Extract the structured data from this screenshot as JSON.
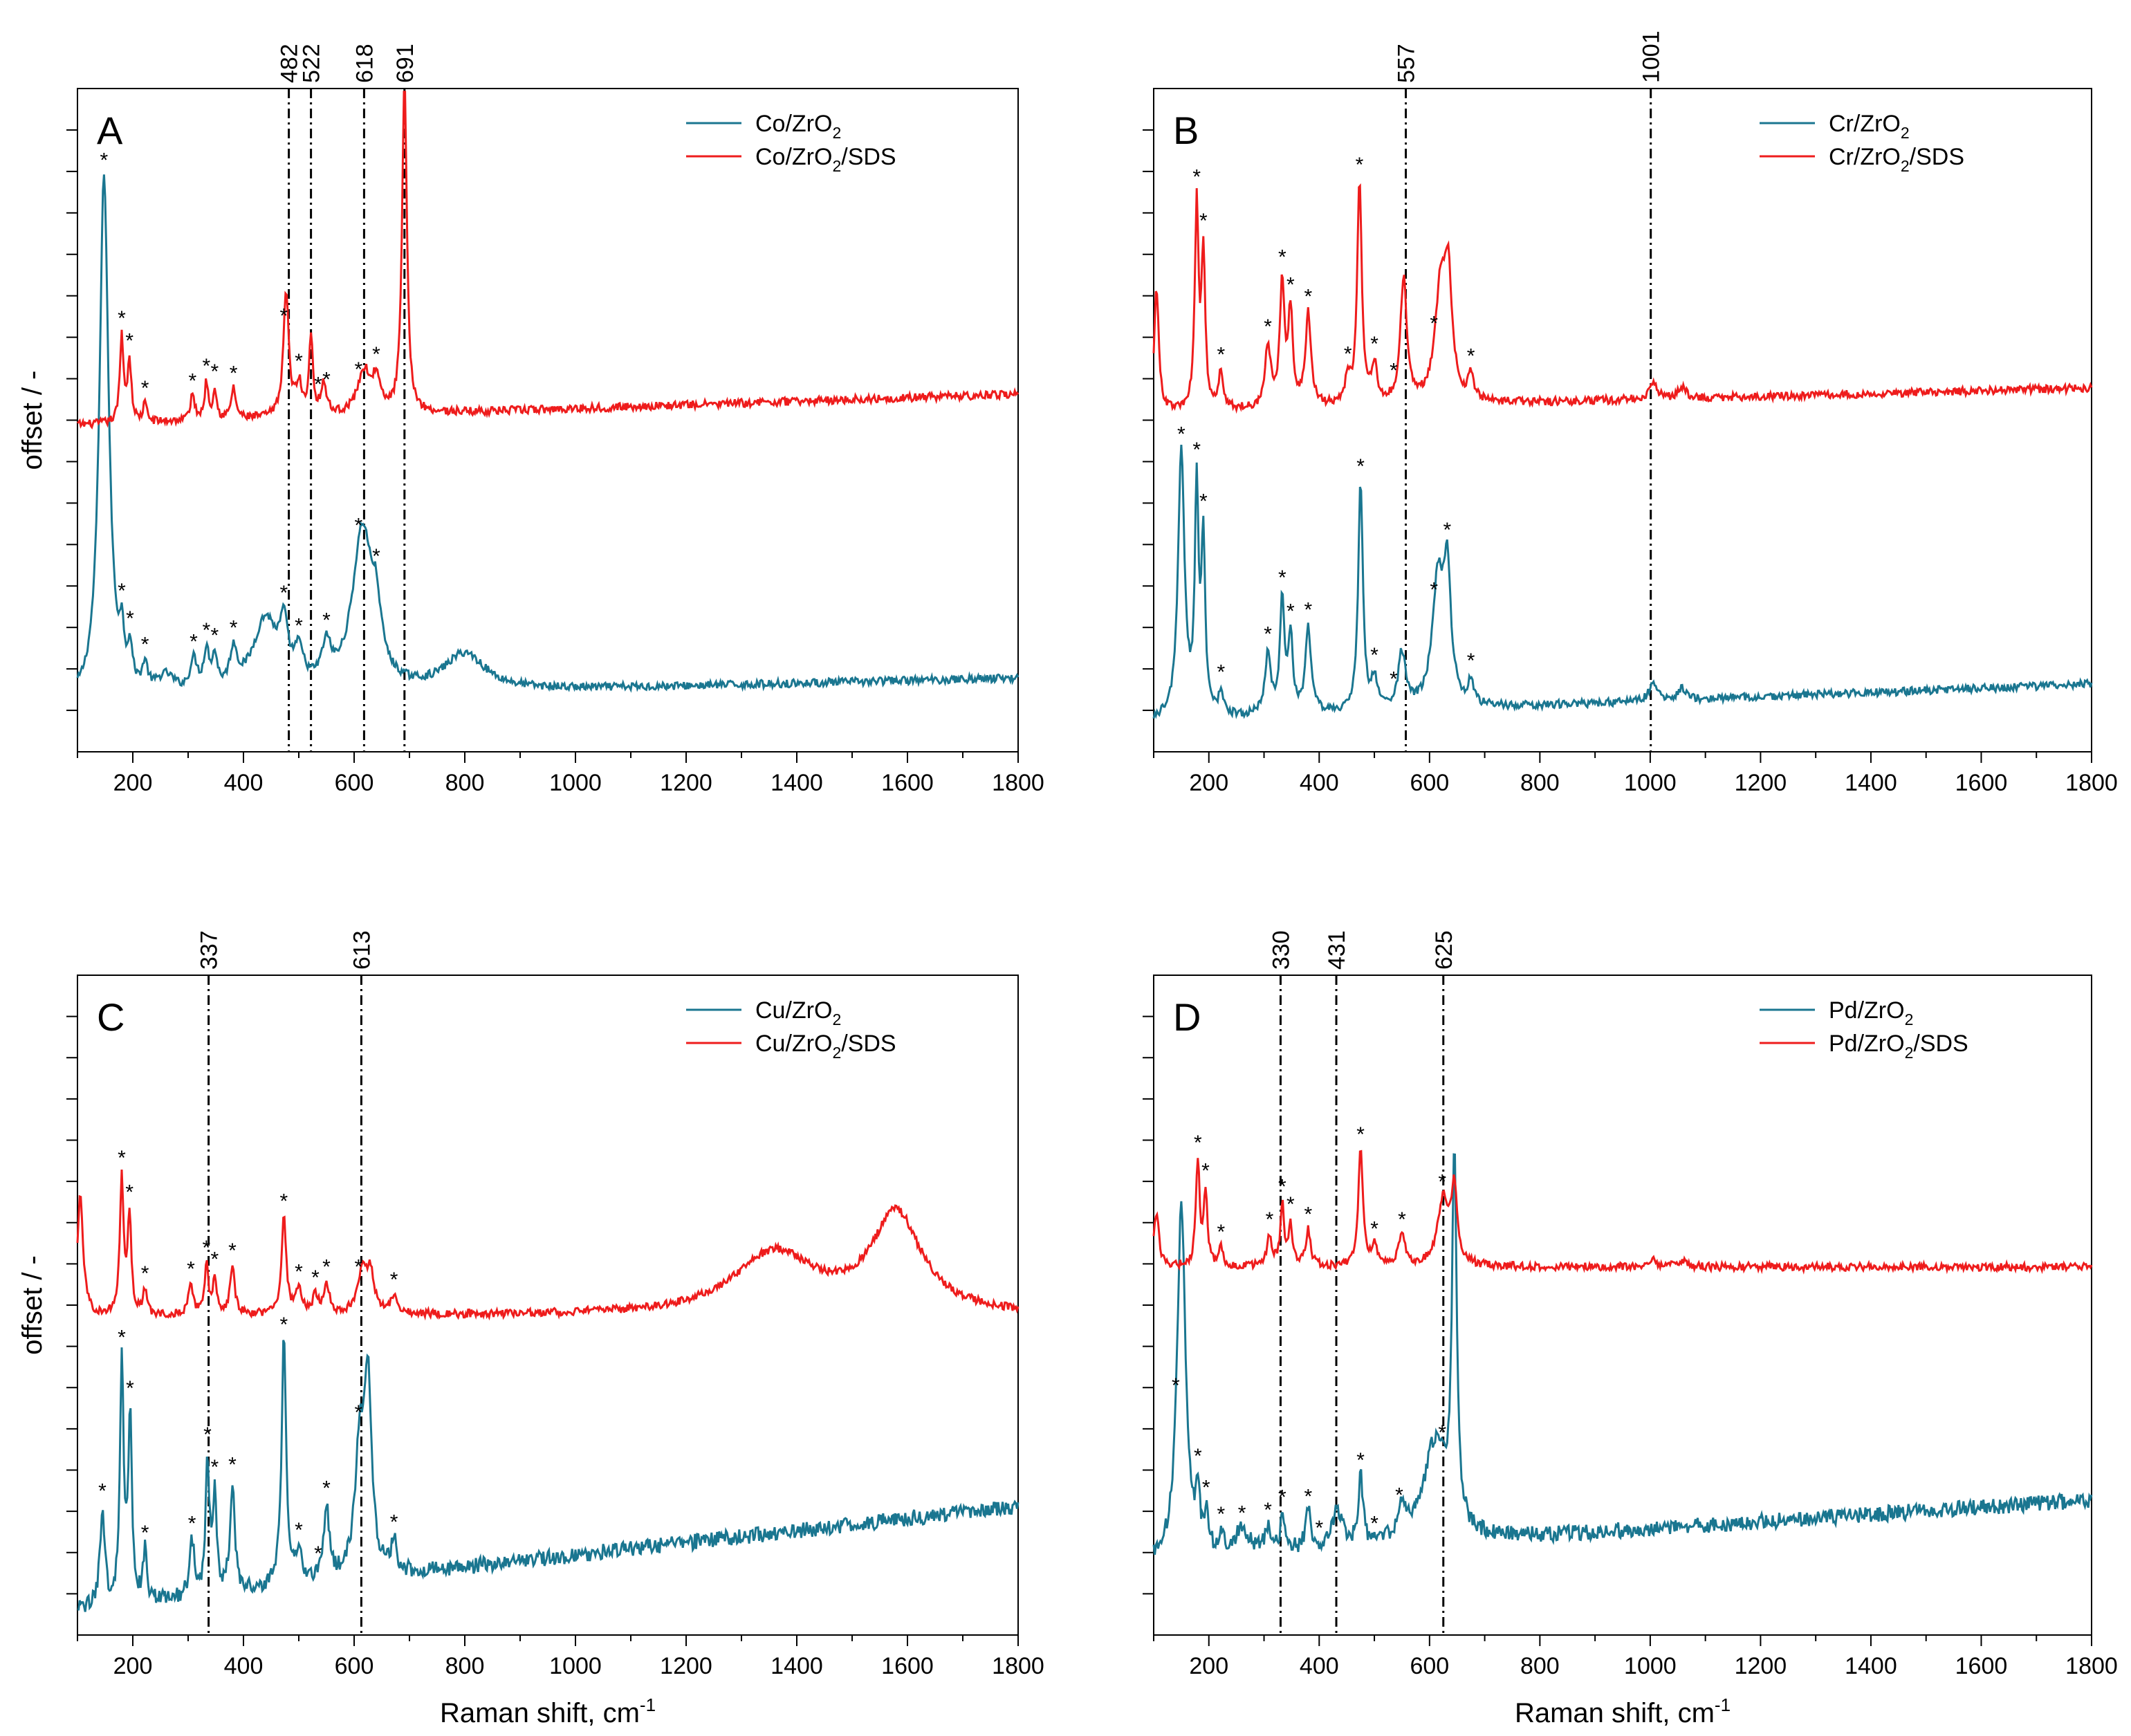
{
  "chart_data": [
    {
      "panel": "A",
      "type": "line",
      "xlabel": "",
      "ylabel": "offset / -",
      "xlim": [
        100,
        1800
      ],
      "xticks": [
        200,
        400,
        600,
        800,
        1000,
        1200,
        1400,
        1600,
        1800
      ],
      "reference_lines": [
        482,
        522,
        618,
        691
      ],
      "legend": [
        {
          "name": "Co/ZrO",
          "sub": "2",
          "after": "",
          "color": "#1a7690"
        },
        {
          "name": "Co/ZrO",
          "sub": "2",
          "after": "/SDS",
          "color": "#ee1c1c"
        }
      ],
      "series": [
        {
          "name": "Co/ZrO2",
          "color": "#1a7690",
          "baseline": 0.08,
          "slope": 0.04,
          "amplitude": 0.93,
          "peaks": [
            [
              148,
              0.85,
              10
            ],
            [
              180,
              0.07,
              5
            ],
            [
              195,
              0.06,
              5
            ],
            [
              222,
              0.04,
              6
            ],
            [
              260,
              0.03,
              20
            ],
            [
              310,
              0.05,
              8
            ],
            [
              333,
              0.06,
              6
            ],
            [
              348,
              0.05,
              6
            ],
            [
              382,
              0.06,
              8
            ],
            [
              440,
              0.12,
              28
            ],
            [
              473,
              0.08,
              8
            ],
            [
              500,
              0.05,
              10
            ],
            [
              550,
              0.06,
              10
            ],
            [
              615,
              0.26,
              22
            ],
            [
              640,
              0.08,
              10
            ],
            [
              800,
              0.06,
              45
            ]
          ],
          "stars": [
            148,
            180,
            195,
            222,
            310,
            333,
            348,
            382,
            473,
            500,
            550,
            608,
            640
          ]
        },
        {
          "name": "Co/ZrO2/SDS",
          "color": "#ee1c1c",
          "baseline": 0.53,
          "slope": 0.05,
          "amplitude": 0.93,
          "peaks": [
            [
              180,
              0.14,
              4
            ],
            [
              194,
              0.1,
              4
            ],
            [
              222,
              0.03,
              4
            ],
            [
              308,
              0.04,
              5
            ],
            [
              333,
              0.06,
              4
            ],
            [
              348,
              0.05,
              4
            ],
            [
              382,
              0.05,
              5
            ],
            [
              477,
              0.2,
              6
            ],
            [
              500,
              0.05,
              6
            ],
            [
              522,
              0.13,
              4
            ],
            [
              545,
              0.05,
              6
            ],
            [
              618,
              0.07,
              14
            ],
            [
              640,
              0.05,
              8
            ],
            [
              691,
              0.55,
              5
            ]
          ],
          "stars": [
            180,
            194,
            222,
            308,
            333,
            348,
            382,
            473,
            500,
            535,
            550,
            608,
            640
          ]
        }
      ]
    },
    {
      "panel": "B",
      "type": "line",
      "xlabel": "",
      "ylabel": "",
      "xlim": [
        100,
        1800
      ],
      "xticks": [
        200,
        400,
        600,
        800,
        1000,
        1200,
        1400,
        1600,
        1800
      ],
      "reference_lines": [
        557,
        1001
      ],
      "legend": [
        {
          "name": "Cr/ZrO",
          "sub": "2",
          "after": "",
          "color": "#1a7690"
        },
        {
          "name": "Cr/ZrO",
          "sub": "2",
          "after": "/SDS",
          "color": "#ee1c1c"
        }
      ],
      "series": [
        {
          "name": "Cr/ZrO2",
          "color": "#1a7690",
          "baseline": 0.05,
          "slope": 0.06,
          "amplitude": 0.93,
          "peaks": [
            [
              150,
              0.43,
              7
            ],
            [
              178,
              0.36,
              4
            ],
            [
              190,
              0.28,
              4
            ],
            [
              222,
              0.04,
              5
            ],
            [
              307,
              0.1,
              6
            ],
            [
              333,
              0.18,
              5
            ],
            [
              348,
              0.12,
              5
            ],
            [
              380,
              0.14,
              6
            ],
            [
              475,
              0.37,
              5
            ],
            [
              500,
              0.05,
              6
            ],
            [
              550,
              0.09,
              8
            ],
            [
              615,
              0.2,
              12
            ],
            [
              632,
              0.2,
              8
            ],
            [
              675,
              0.04,
              6
            ],
            [
              1005,
              0.03,
              8
            ],
            [
              1058,
              0.02,
              8
            ]
          ],
          "stars": [
            150,
            178,
            190,
            222,
            307,
            333,
            348,
            380,
            475,
            500,
            535,
            608,
            632,
            675
          ]
        },
        {
          "name": "Cr/ZrO2/SDS",
          "color": "#ee1c1c",
          "baseline": 0.55,
          "slope": 0.04,
          "amplitude": 0.93,
          "peaks": [
            [
              105,
              0.2,
              5
            ],
            [
              178,
              0.33,
              4
            ],
            [
              190,
              0.25,
              4
            ],
            [
              222,
              0.06,
              5
            ],
            [
              307,
              0.1,
              6
            ],
            [
              333,
              0.2,
              5
            ],
            [
              348,
              0.15,
              5
            ],
            [
              380,
              0.15,
              6
            ],
            [
              452,
              0.04,
              6
            ],
            [
              473,
              0.36,
              5
            ],
            [
              500,
              0.06,
              6
            ],
            [
              553,
              0.2,
              7
            ],
            [
              620,
              0.18,
              12
            ],
            [
              634,
              0.18,
              8
            ],
            [
              675,
              0.04,
              6
            ],
            [
              1005,
              0.03,
              8
            ],
            [
              1058,
              0.02,
              8
            ]
          ],
          "stars": [
            178,
            190,
            222,
            307,
            333,
            348,
            380,
            452,
            473,
            500,
            535,
            608,
            675
          ]
        }
      ]
    },
    {
      "panel": "C",
      "type": "line",
      "xlabel": "Raman shift, cm",
      "xlabel_sup": "-1",
      "ylabel": "offset / -",
      "xlim": [
        100,
        1800
      ],
      "xticks": [
        200,
        400,
        600,
        800,
        1000,
        1200,
        1400,
        1600,
        1800
      ],
      "reference_lines": [
        337,
        613
      ],
      "legend": [
        {
          "name": "Cu/ZrO",
          "sub": "2",
          "after": "",
          "color": "#1a7690"
        },
        {
          "name": "Cu/ZrO",
          "sub": "2",
          "after": "/SDS",
          "color": "#ee1c1c"
        }
      ],
      "series": [
        {
          "name": "Cu/ZrO2",
          "color": "#1a7690",
          "baseline": 0.04,
          "slope": 0.17,
          "amplitude": 0.93,
          "peaks": [
            [
              145,
              0.16,
              5
            ],
            [
              180,
              0.39,
              4
            ],
            [
              195,
              0.3,
              4
            ],
            [
              222,
              0.08,
              4
            ],
            [
              307,
              0.09,
              5
            ],
            [
              335,
              0.22,
              4
            ],
            [
              348,
              0.16,
              4
            ],
            [
              380,
              0.18,
              5
            ],
            [
              473,
              0.4,
              5
            ],
            [
              500,
              0.05,
              6
            ],
            [
              550,
              0.12,
              6
            ],
            [
              610,
              0.2,
              10
            ],
            [
              625,
              0.3,
              8
            ],
            [
              672,
              0.05,
              6
            ]
          ],
          "stars": [
            145,
            180,
            195,
            222,
            307,
            335,
            348,
            380,
            473,
            500,
            535,
            550,
            608,
            672
          ]
        },
        {
          "name": "Cu/ZrO2/SDS",
          "color": "#ee1c1c",
          "baseline": 0.52,
          "slope": 0.0,
          "amplitude": 0.93,
          "peaks": [
            [
              105,
              0.2,
              6
            ],
            [
              180,
              0.22,
              4
            ],
            [
              194,
              0.16,
              4
            ],
            [
              222,
              0.04,
              4
            ],
            [
              305,
              0.05,
              5
            ],
            [
              333,
              0.08,
              4
            ],
            [
              348,
              0.06,
              4
            ],
            [
              380,
              0.08,
              5
            ],
            [
              473,
              0.16,
              5
            ],
            [
              500,
              0.04,
              6
            ],
            [
              530,
              0.03,
              6
            ],
            [
              550,
              0.05,
              6
            ],
            [
              615,
              0.07,
              10
            ],
            [
              630,
              0.06,
              8
            ],
            [
              672,
              0.03,
              6
            ],
            [
              1360,
              0.1,
              90
            ],
            [
              1580,
              0.16,
              55
            ]
          ],
          "stars": [
            180,
            194,
            222,
            305,
            333,
            348,
            380,
            473,
            500,
            530,
            550,
            608,
            672
          ]
        }
      ]
    },
    {
      "panel": "D",
      "type": "line",
      "xlabel": "Raman shift, cm",
      "xlabel_sup": "-1",
      "ylabel": "",
      "xlim": [
        100,
        1800
      ],
      "xticks": [
        200,
        400,
        600,
        800,
        1000,
        1200,
        1400,
        1600,
        1800
      ],
      "reference_lines": [
        330,
        431,
        625
      ],
      "legend": [
        {
          "name": "Pd/ZrO",
          "sub": "2",
          "after": "",
          "color": "#1a7690"
        },
        {
          "name": "Pd/ZrO",
          "sub": "2",
          "after": "/SDS",
          "color": "#ee1c1c"
        }
      ],
      "series": [
        {
          "name": "Pd/ZrO2",
          "color": "#1a7690",
          "baseline": 0.12,
          "slope": 0.1,
          "amplitude": 0.93,
          "peaks": [
            [
              150,
              0.58,
              9
            ],
            [
              180,
              0.09,
              4
            ],
            [
              195,
              0.06,
              4
            ],
            [
              222,
              0.03,
              5
            ],
            [
              260,
              0.04,
              15
            ],
            [
              307,
              0.04,
              6
            ],
            [
              333,
              0.06,
              4
            ],
            [
              380,
              0.06,
              6
            ],
            [
              433,
              0.06,
              10
            ],
            [
              475,
              0.11,
              5
            ],
            [
              550,
              0.05,
              8
            ],
            [
              610,
              0.16,
              25
            ],
            [
              645,
              0.6,
              5
            ]
          ],
          "stars": [
            140,
            180,
            195,
            222,
            260,
            307,
            333,
            380,
            400,
            475,
            500,
            545,
            623
          ]
        },
        {
          "name": "Pd/ZrO2/SDS",
          "color": "#ee1c1c",
          "baseline": 0.6,
          "slope": 0.0,
          "amplitude": 0.93,
          "peaks": [
            [
              105,
              0.09,
              5
            ],
            [
              180,
              0.17,
              4
            ],
            [
              194,
              0.12,
              4
            ],
            [
              222,
              0.03,
              4
            ],
            [
              310,
              0.05,
              5
            ],
            [
              333,
              0.1,
              4
            ],
            [
              348,
              0.07,
              4
            ],
            [
              380,
              0.06,
              5
            ],
            [
              475,
              0.19,
              5
            ],
            [
              500,
              0.03,
              6
            ],
            [
              550,
              0.05,
              7
            ],
            [
              625,
              0.11,
              12
            ],
            [
              645,
              0.12,
              6
            ],
            [
              1005,
              0.01,
              10
            ],
            [
              1060,
              0.01,
              10
            ]
          ],
          "stars": [
            180,
            194,
            222,
            310,
            333,
            348,
            380,
            475,
            500,
            550,
            623
          ]
        }
      ]
    }
  ]
}
